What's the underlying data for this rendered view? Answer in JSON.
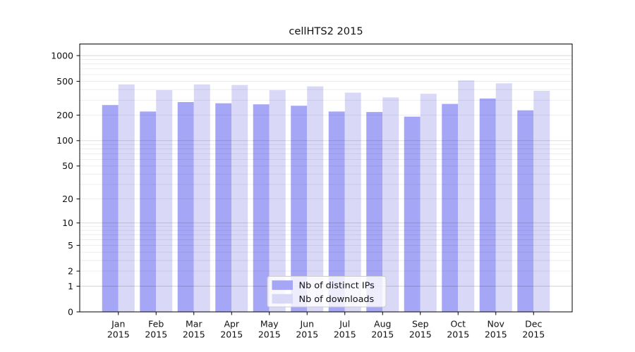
{
  "figure": {
    "background": "#ffffff"
  },
  "chart_data": {
    "type": "bar",
    "title": "cellHTS2 2015",
    "categories": [
      {
        "month": "Jan",
        "year": "2015"
      },
      {
        "month": "Feb",
        "year": "2015"
      },
      {
        "month": "Mar",
        "year": "2015"
      },
      {
        "month": "Apr",
        "year": "2015"
      },
      {
        "month": "May",
        "year": "2015"
      },
      {
        "month": "Jun",
        "year": "2015"
      },
      {
        "month": "Jul",
        "year": "2015"
      },
      {
        "month": "Aug",
        "year": "2015"
      },
      {
        "month": "Sep",
        "year": "2015"
      },
      {
        "month": "Oct",
        "year": "2015"
      },
      {
        "month": "Nov",
        "year": "2015"
      },
      {
        "month": "Dec",
        "year": "2015"
      }
    ],
    "series": [
      {
        "name": "Nb of distinct IPs",
        "color": "#a6a6f7",
        "values": [
          263,
          221,
          285,
          276,
          268,
          258,
          221,
          218,
          192,
          271,
          314,
          228
        ]
      },
      {
        "name": "Nb of downloads",
        "color": "#d9d9f7",
        "values": [
          459,
          394,
          459,
          453,
          393,
          436,
          368,
          324,
          357,
          512,
          474,
          387
        ]
      }
    ],
    "y_axis": {
      "scale": "log1p",
      "ticks": [
        0,
        1,
        2,
        5,
        10,
        20,
        50,
        100,
        200,
        500,
        1000
      ],
      "ylim": [
        0,
        1370
      ]
    },
    "x_axis": {
      "tick_labels_two_lines": true
    },
    "legend": {
      "position": "bottom-center-inside",
      "entries": [
        "Nb of distinct IPs",
        "Nb of downloads"
      ]
    },
    "grid": {
      "horizontal": true,
      "minor_color": "rgba(0,0,0,0.08)",
      "major_color": "rgba(0,0,0,0.16)",
      "major_at": [
        1,
        10,
        100,
        1000
      ]
    },
    "colors": {
      "spine": "#000000",
      "tick": "#000000",
      "legend_border": "#cccccc",
      "legend_background": "#ffffff"
    }
  }
}
